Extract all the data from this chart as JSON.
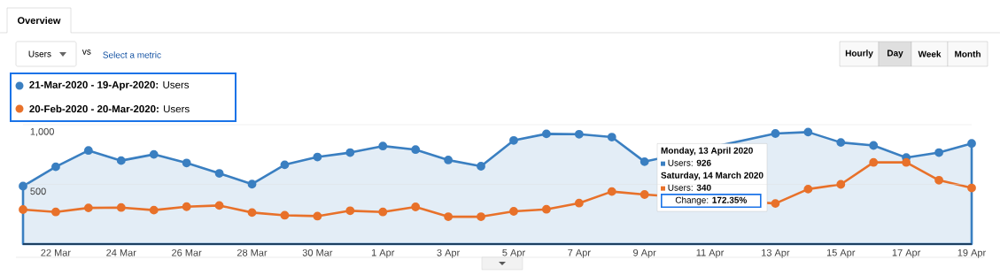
{
  "chart_data": {
    "type": "line",
    "categories": [
      null,
      "22 Mar",
      null,
      "24 Mar",
      null,
      "26 Mar",
      null,
      "28 Mar",
      null,
      "30 Mar",
      null,
      "1 Apr",
      null,
      "3 Apr",
      null,
      "5 Apr",
      null,
      "7 Apr",
      null,
      "9 Apr",
      null,
      "11 Apr",
      null,
      "13 Apr",
      null,
      "15 Apr",
      null,
      "17 Apr",
      null,
      "19 Apr"
    ],
    "series": [
      {
        "name": "**21-Mar-2020 - 19-Apr-2020:** Users",
        "type": "area",
        "color": "#3a7fc1",
        "values": [
          485,
          647,
          784,
          699,
          751,
          679,
          592,
          502,
          664,
          729,
          766,
          821,
          791,
          704,
          652,
          868,
          923,
          920,
          896,
          690,
          null,
          null,
          null,
          926,
          938,
          851,
          826,
          724,
          766,
          843
        ]
      },
      {
        "name": "**20-Feb-2020 - 20-Mar-2020:** Users",
        "color": "#e8712a",
        "values": [
          289,
          269,
          303,
          306,
          284,
          313,
          323,
          264,
          241,
          234,
          279,
          269,
          311,
          229,
          229,
          274,
          291,
          343,
          440,
          415,
          null,
          null,
          null,
          340,
          460,
          500,
          684,
          684,
          535,
          470
        ]
      }
    ],
    "ylim": [
      0,
      1000
    ],
    "yticks": [
      {
        "value": 500,
        "label": "500"
      },
      {
        "value": 1000,
        "label": "1,000"
      }
    ],
    "grid": "y",
    "legend": "top left",
    "marker": "circle",
    "annotations": [
      "Overview",
      "Users",
      "vs",
      "Select a metric",
      "Hourly",
      "Day",
      "Week",
      "Month",
      "Monday, 13 April 2020",
      "Users: **926**",
      "Saturday, 14 March 2020",
      "Users: **340**",
      "Change: **172.35%**"
    ]
  }
}
